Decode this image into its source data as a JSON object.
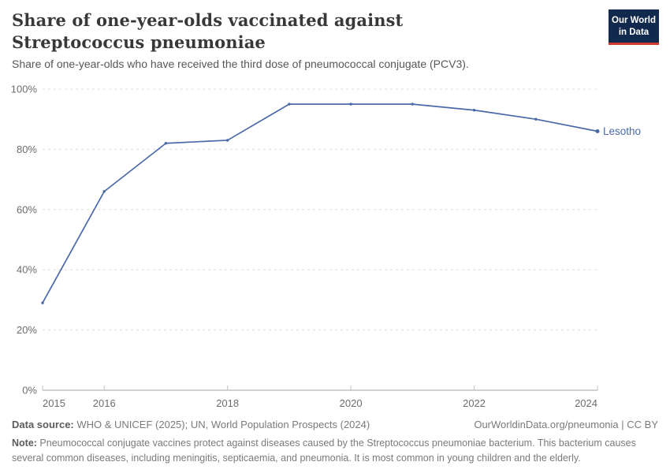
{
  "header": {
    "title": "Share of one-year-olds vaccinated against Streptococcus pneumoniae",
    "subtitle": "Share of one-year-olds who have received the third dose of pneumococcal conjugate (PCV3)."
  },
  "logo": {
    "line1": "Our World",
    "line2": "in Data",
    "bg_color": "#12294e",
    "accent_color": "#d0392e"
  },
  "footer": {
    "source_label": "Data source:",
    "source_text": " WHO & UNICEF (2025); UN, World Population Prospects (2024)",
    "rights_url": "OurWorldinData.org/pneumonia",
    "rights_license": " | CC BY",
    "note_label": "Note:",
    "note_text": " Pneumococcal conjugate vaccines protect against diseases caused by the Streptococcus pneumoniae bacterium. This bacterium causes several common diseases, including meningitis, septicaemia, and pneumonia. It is most common in young children and the elderly."
  },
  "chart_data": {
    "type": "line",
    "title": "Share of one-year-olds vaccinated against Streptococcus pneumoniae",
    "xlabel": "",
    "ylabel": "",
    "x": [
      2015,
      2016,
      2017,
      2018,
      2019,
      2020,
      2021,
      2022,
      2023,
      2024
    ],
    "series": [
      {
        "name": "Lesotho",
        "values": [
          29,
          66,
          82,
          83,
          95,
          95,
          95,
          93,
          90,
          86
        ]
      }
    ],
    "ylim": [
      0,
      100
    ],
    "y_ticks": [
      0,
      20,
      40,
      60,
      80,
      100
    ],
    "y_tick_suffix": "%",
    "x_ticks": [
      2015,
      2016,
      2018,
      2020,
      2022,
      2024
    ],
    "grid": "horizontal-dashed",
    "legend_position": "end-of-line-label",
    "line_color": "#4a69a8",
    "gridline_color": "#dcdcdc",
    "axis_color": "#a3a3a3",
    "tick_color": "#c4c4c4",
    "tick_label_color": "#6c6c6c"
  }
}
